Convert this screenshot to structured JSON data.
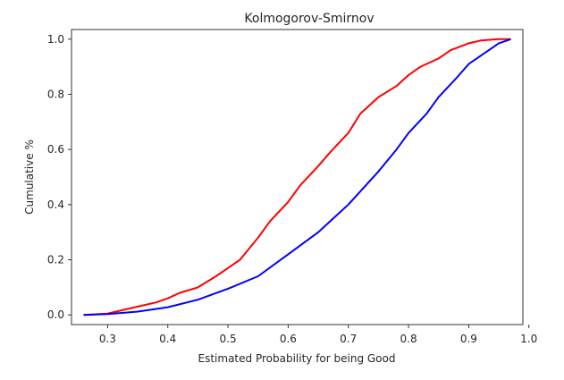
{
  "chart_data": {
    "type": "line",
    "title": "Kolmogorov-Smirnov",
    "xlabel": "Estimated Probability for being Good",
    "ylabel": "Cumulative %",
    "xlim": [
      0.24,
      0.99
    ],
    "ylim": [
      -0.035,
      1.035
    ],
    "grid": false,
    "x_ticks": [
      0.3,
      0.4,
      0.5,
      0.6,
      0.7,
      0.8,
      0.9,
      1.0
    ],
    "x_tick_labels": [
      "0.3",
      "0.4",
      "0.5",
      "0.6",
      "0.7",
      "0.8",
      "0.9",
      "1.0"
    ],
    "y_ticks": [
      0.0,
      0.2,
      0.4,
      0.6,
      0.8,
      1.0
    ],
    "y_tick_labels": [
      "0.0",
      "0.2",
      "0.4",
      "0.6",
      "0.8",
      "1.0"
    ],
    "series": [
      {
        "color": "#ff0000",
        "x": [
          0.26,
          0.3,
          0.33,
          0.36,
          0.38,
          0.4,
          0.42,
          0.45,
          0.48,
          0.5,
          0.52,
          0.55,
          0.57,
          0.6,
          0.62,
          0.65,
          0.67,
          0.7,
          0.72,
          0.75,
          0.78,
          0.8,
          0.82,
          0.85,
          0.87,
          0.9,
          0.92,
          0.95,
          0.97
        ],
        "y": [
          0.0,
          0.005,
          0.02,
          0.035,
          0.045,
          0.06,
          0.08,
          0.1,
          0.14,
          0.17,
          0.2,
          0.28,
          0.34,
          0.41,
          0.47,
          0.54,
          0.59,
          0.66,
          0.73,
          0.79,
          0.83,
          0.87,
          0.9,
          0.93,
          0.96,
          0.985,
          0.995,
          1.0,
          1.0
        ]
      },
      {
        "color": "#0000ff",
        "x": [
          0.26,
          0.3,
          0.35,
          0.4,
          0.45,
          0.5,
          0.55,
          0.6,
          0.65,
          0.7,
          0.75,
          0.78,
          0.8,
          0.83,
          0.85,
          0.88,
          0.9,
          0.93,
          0.95,
          0.97
        ],
        "y": [
          0.0,
          0.003,
          0.012,
          0.028,
          0.055,
          0.095,
          0.14,
          0.22,
          0.3,
          0.4,
          0.52,
          0.6,
          0.66,
          0.73,
          0.79,
          0.86,
          0.91,
          0.955,
          0.985,
          1.0
        ]
      }
    ]
  }
}
